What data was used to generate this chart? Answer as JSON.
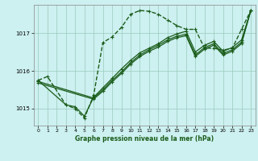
{
  "title": "Graphe pression niveau de la mer (hPa)",
  "bg_color": "#cdf0f0",
  "grid_color": "#99ccbb",
  "line_color": "#1a5c1a",
  "xlim": [
    -0.5,
    23.5
  ],
  "ylim": [
    1014.55,
    1017.75
  ],
  "yticks": [
    1015,
    1016,
    1017
  ],
  "xticks": [
    0,
    1,
    2,
    3,
    4,
    5,
    6,
    7,
    8,
    9,
    10,
    11,
    12,
    13,
    14,
    15,
    16,
    17,
    18,
    19,
    20,
    21,
    22,
    23
  ],
  "series": [
    {
      "x": [
        0,
        1,
        3,
        4,
        5,
        6,
        7,
        8,
        9,
        10,
        11,
        12,
        13,
        14,
        15,
        16,
        17,
        18,
        19,
        20,
        21,
        22,
        23
      ],
      "y": [
        1015.75,
        1015.85,
        1015.1,
        1015.0,
        1014.75,
        1015.35,
        1016.75,
        1016.9,
        1017.15,
        1017.5,
        1017.6,
        1017.58,
        1017.5,
        1017.35,
        1017.2,
        1017.1,
        1017.1,
        1016.6,
        1016.6,
        1016.55,
        1016.6,
        1017.1,
        1017.6
      ],
      "style": "--",
      "lw": 1.0
    },
    {
      "x": [
        0,
        3,
        4,
        5,
        6,
        7,
        8,
        9,
        10,
        11,
        12,
        13,
        14,
        15,
        16,
        17,
        18,
        19,
        20,
        21,
        22,
        23
      ],
      "y": [
        1015.75,
        1015.1,
        1015.05,
        1014.8,
        1015.3,
        1015.55,
        1015.8,
        1016.05,
        1016.28,
        1016.48,
        1016.6,
        1016.72,
        1016.88,
        1016.98,
        1017.05,
        1016.5,
        1016.68,
        1016.78,
        1016.52,
        1016.62,
        1016.82,
        1017.6
      ],
      "style": "-",
      "lw": 0.9
    },
    {
      "x": [
        0,
        6,
        7,
        8,
        9,
        10,
        11,
        12,
        13,
        14,
        15,
        16,
        17,
        18,
        19,
        20,
        21,
        22,
        23
      ],
      "y": [
        1015.72,
        1015.28,
        1015.5,
        1015.75,
        1015.97,
        1016.22,
        1016.42,
        1016.56,
        1016.68,
        1016.82,
        1016.92,
        1016.97,
        1016.42,
        1016.62,
        1016.72,
        1016.46,
        1016.56,
        1016.76,
        1017.6
      ],
      "style": "-",
      "lw": 0.9
    },
    {
      "x": [
        0,
        6,
        7,
        8,
        9,
        10,
        11,
        12,
        13,
        14,
        15,
        16,
        17,
        18,
        19,
        20,
        21,
        22,
        23
      ],
      "y": [
        1015.68,
        1015.25,
        1015.46,
        1015.71,
        1015.93,
        1016.18,
        1016.38,
        1016.52,
        1016.63,
        1016.78,
        1016.88,
        1016.93,
        1016.38,
        1016.58,
        1016.68,
        1016.42,
        1016.52,
        1016.72,
        1017.6
      ],
      "style": "-",
      "lw": 0.9
    }
  ]
}
